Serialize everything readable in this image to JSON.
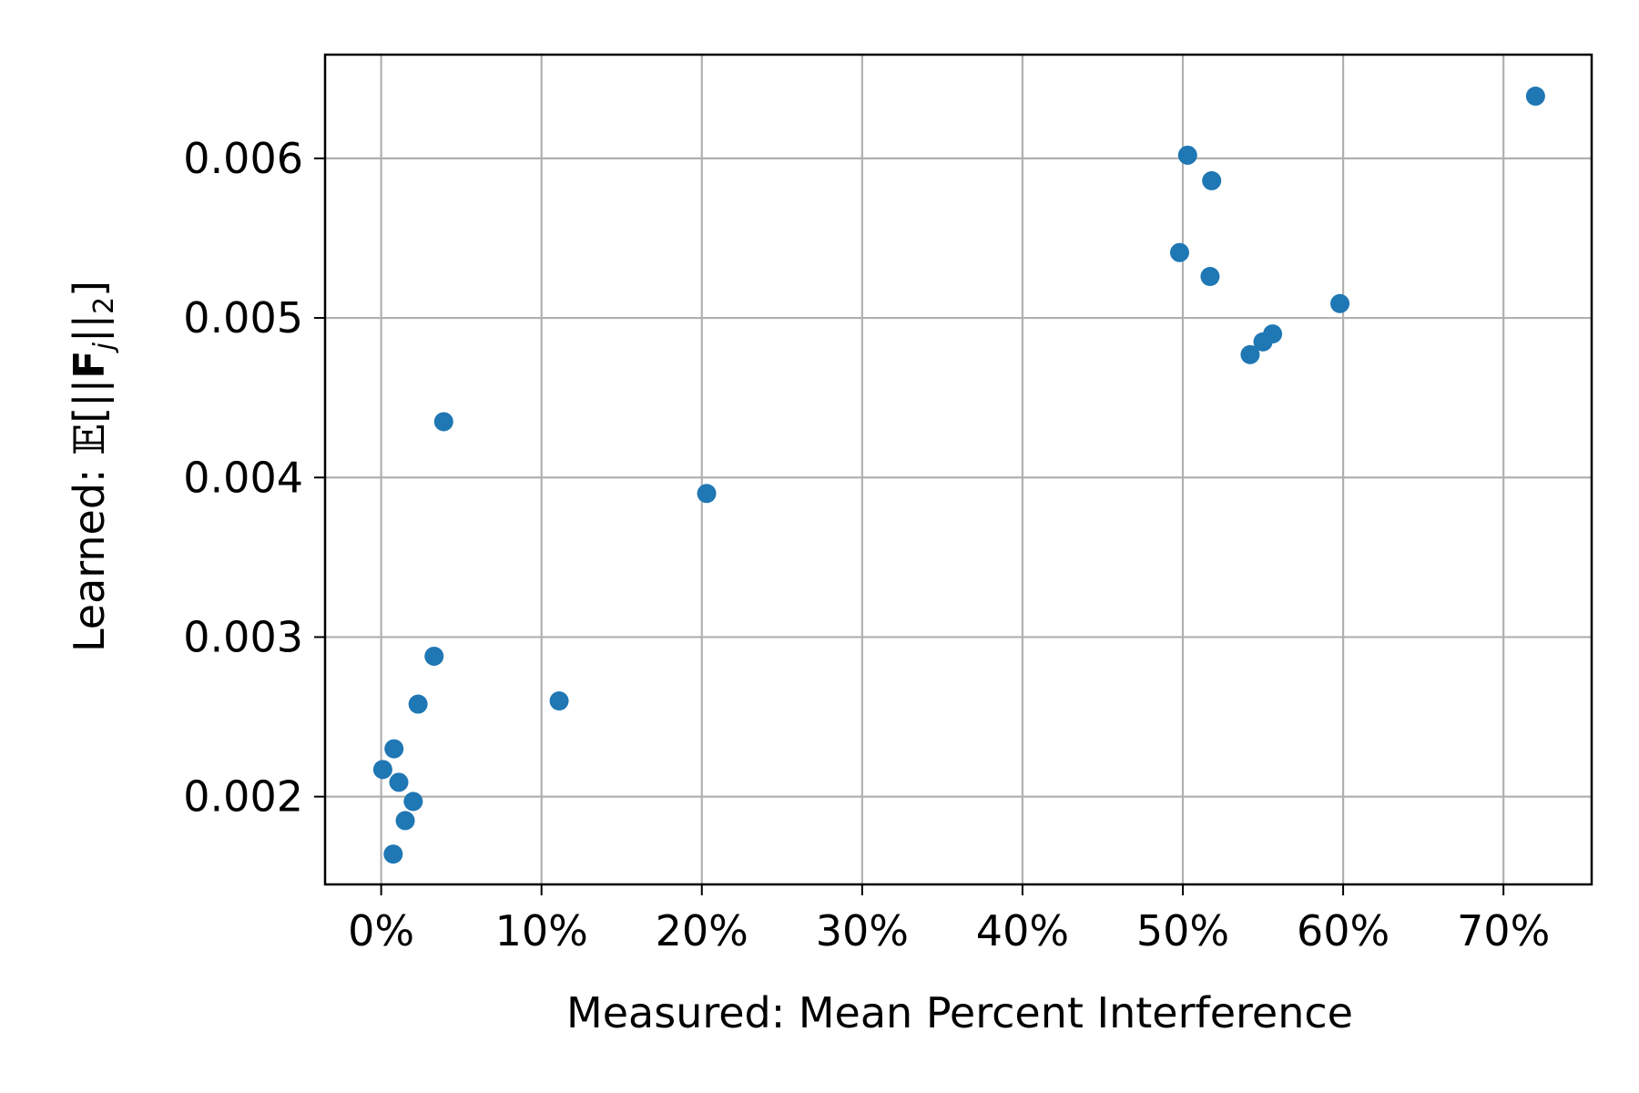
{
  "chart_data": {
    "type": "scatter",
    "title": "",
    "xlabel": "Measured: Mean Percent Interference",
    "ylabel": {
      "prefix": "Learned: ",
      "bb": "𝔼",
      "open": "[||",
      "bold": "F",
      "sub_j": "j",
      "mid": "||",
      "sub_2": "2",
      "close": "]"
    },
    "xlim": [
      -3.5,
      75.5
    ],
    "ylim": [
      0.00145,
      0.00665
    ],
    "xticks": [
      0,
      10,
      20,
      30,
      40,
      50,
      60,
      70
    ],
    "xtick_labels": [
      "0%",
      "10%",
      "20%",
      "30%",
      "40%",
      "50%",
      "60%",
      "70%"
    ],
    "yticks": [
      0.002,
      0.003,
      0.004,
      0.005,
      0.006
    ],
    "ytick_labels": [
      "0.002",
      "0.003",
      "0.004",
      "0.005",
      "0.006"
    ],
    "grid": true,
    "marker_color": "#1f77b4",
    "points": [
      {
        "x": 0.1,
        "y": 0.00217
      },
      {
        "x": 0.8,
        "y": 0.0023
      },
      {
        "x": 1.1,
        "y": 0.00209
      },
      {
        "x": 2.0,
        "y": 0.00197
      },
      {
        "x": 1.5,
        "y": 0.00185
      },
      {
        "x": 0.75,
        "y": 0.00164
      },
      {
        "x": 2.3,
        "y": 0.00258
      },
      {
        "x": 3.3,
        "y": 0.00288
      },
      {
        "x": 3.9,
        "y": 0.00435
      },
      {
        "x": 11.1,
        "y": 0.0026
      },
      {
        "x": 20.3,
        "y": 0.0039
      },
      {
        "x": 49.8,
        "y": 0.00541
      },
      {
        "x": 50.3,
        "y": 0.00602
      },
      {
        "x": 51.7,
        "y": 0.00526
      },
      {
        "x": 51.8,
        "y": 0.00586
      },
      {
        "x": 54.2,
        "y": 0.00477
      },
      {
        "x": 55.0,
        "y": 0.00485
      },
      {
        "x": 55.6,
        "y": 0.0049
      },
      {
        "x": 59.8,
        "y": 0.00509
      },
      {
        "x": 72.0,
        "y": 0.00639
      }
    ]
  }
}
